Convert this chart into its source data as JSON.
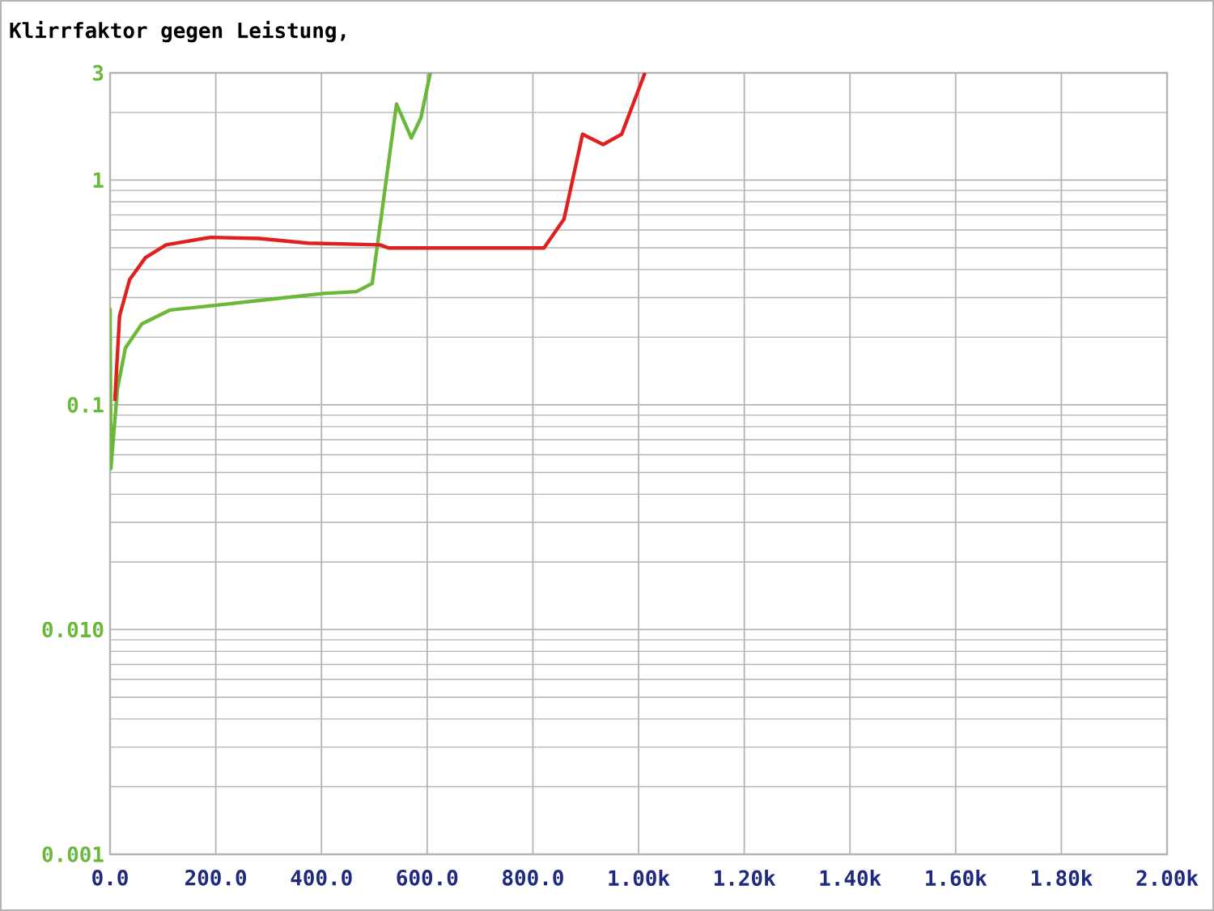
{
  "chart_data": {
    "type": "line",
    "title": "Klirrfaktor gegen Leistung,",
    "log": "y",
    "grid": true,
    "xlim": [
      0,
      2000
    ],
    "ylim": [
      0.001,
      3
    ],
    "xticks": [
      {
        "value": 0,
        "label": "0.0"
      },
      {
        "value": 200,
        "label": "200.0"
      },
      {
        "value": 400,
        "label": "400.0"
      },
      {
        "value": 600,
        "label": "600.0"
      },
      {
        "value": 800,
        "label": "800.0"
      },
      {
        "value": 1000,
        "label": "1.00k"
      },
      {
        "value": 1200,
        "label": "1.20k"
      },
      {
        "value": 1400,
        "label": "1.40k"
      },
      {
        "value": 1600,
        "label": "1.60k"
      },
      {
        "value": 1800,
        "label": "1.80k"
      },
      {
        "value": 2000,
        "label": "2.00k"
      }
    ],
    "yticks": [
      0.001,
      {
        "value": 0.01,
        "label": "0.010"
      },
      0.1,
      1,
      3
    ],
    "series": [
      {
        "color": "#6ab83a",
        "x": [
          0,
          1.5,
          14,
          29,
          60,
          113,
          198,
          297,
          404,
          466,
          496,
          542,
          570,
          588,
          606
        ],
        "values": [
          0.27,
          0.052,
          0.118,
          0.179,
          0.229,
          0.264,
          0.277,
          0.294,
          0.313,
          0.319,
          0.347,
          2.18,
          1.54,
          1.89,
          3.0
        ]
      },
      {
        "color": "#e02020",
        "x": [
          9,
          18,
          37,
          67,
          106,
          190,
          282,
          374,
          511,
          527,
          821,
          859,
          894,
          933,
          968,
          1012
        ],
        "values": [
          0.104,
          0.249,
          0.361,
          0.452,
          0.515,
          0.556,
          0.55,
          0.524,
          0.515,
          0.499,
          0.499,
          0.671,
          1.6,
          1.44,
          1.6,
          3.0
        ]
      }
    ]
  }
}
